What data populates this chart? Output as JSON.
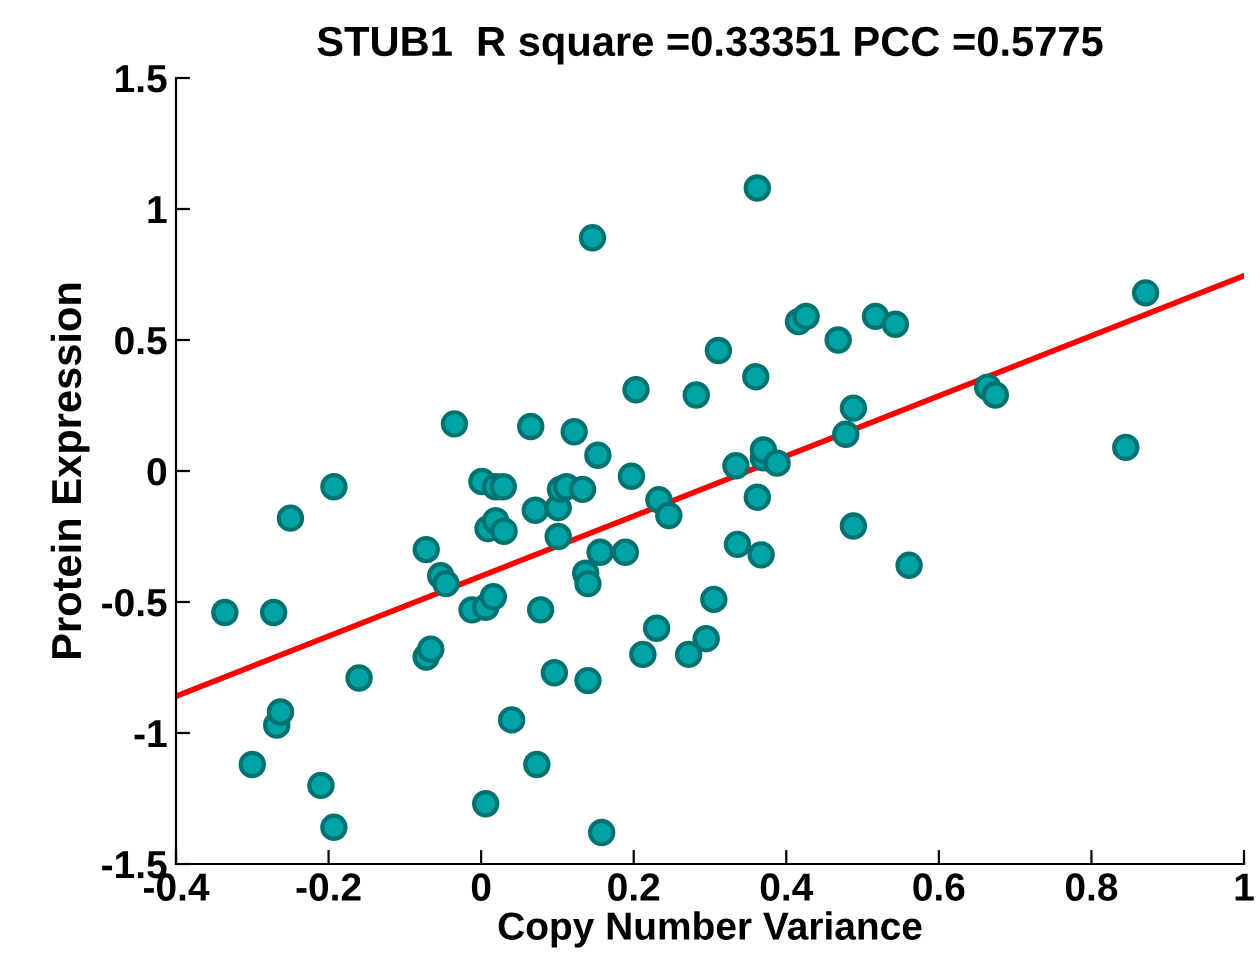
{
  "chart_data": {
    "type": "scatter",
    "title": "STUB1  R square =0.33351 PCC =0.5775",
    "xlabel": "Copy Number Variance",
    "ylabel": "Protein Expression",
    "xlim": [
      -0.4,
      1
    ],
    "ylim": [
      -1.5,
      1.5
    ],
    "xticks": [
      -0.4,
      -0.2,
      0,
      0.2,
      0.4,
      0.6,
      0.8,
      1
    ],
    "yticks": [
      -1.5,
      -1,
      -0.5,
      0,
      0.5,
      1,
      1.5
    ],
    "grid": false,
    "legend": false,
    "marker": "circle",
    "series": [
      {
        "color": "#00a3a3",
        "x": [
          -0.336,
          -0.272,
          -0.268,
          -0.263,
          -0.3,
          -0.21,
          -0.193,
          -0.25,
          -0.193,
          -0.16,
          -0.035,
          -0.072,
          -0.053,
          -0.046,
          -0.072,
          -0.066,
          -0.012,
          0.006,
          0.016,
          0.001,
          0.019,
          0.009,
          0.019,
          0.03,
          0.029,
          0.04,
          0.006,
          0.073,
          0.065,
          0.071,
          0.078,
          0.096,
          0.101,
          0.101,
          0.104,
          0.112,
          0.122,
          0.133,
          0.137,
          0.14,
          0.14,
          0.153,
          0.146,
          0.156,
          0.158,
          0.189,
          0.197,
          0.203,
          0.212,
          0.233,
          0.23,
          0.246,
          0.272,
          0.282,
          0.295,
          0.305,
          0.311,
          0.334,
          0.336,
          0.36,
          0.362,
          0.362,
          0.37,
          0.37,
          0.367,
          0.388,
          0.416,
          0.426,
          0.468,
          0.488,
          0.478,
          0.488,
          0.517,
          0.543,
          0.561,
          0.664,
          0.674,
          0.845,
          0.871
        ],
        "values": [
          -0.54,
          -0.54,
          -0.97,
          -0.92,
          -1.12,
          -1.2,
          -1.36,
          -0.18,
          -0.06,
          -0.79,
          0.18,
          -0.3,
          -0.4,
          -0.43,
          -0.71,
          -0.68,
          -0.53,
          -0.52,
          -0.48,
          -0.04,
          -0.06,
          -0.22,
          -0.19,
          -0.23,
          -0.06,
          -0.95,
          -1.27,
          -1.12,
          0.17,
          -0.15,
          -0.53,
          -0.77,
          -0.25,
          -0.14,
          -0.07,
          -0.06,
          0.15,
          -0.07,
          -0.39,
          -0.43,
          -0.8,
          0.06,
          0.89,
          -0.31,
          -1.38,
          -0.31,
          -0.02,
          0.31,
          -0.7,
          -0.11,
          -0.6,
          -0.17,
          -0.7,
          0.29,
          -0.64,
          -0.49,
          0.46,
          0.02,
          -0.28,
          0.36,
          1.08,
          -0.1,
          0.05,
          0.08,
          -0.32,
          0.03,
          0.57,
          0.59,
          0.5,
          0.24,
          0.14,
          -0.21,
          0.59,
          0.56,
          -0.36,
          0.32,
          0.29,
          0.09,
          0.68
        ]
      },
      {
        "type": "line",
        "color": "#ff0000",
        "marker": "none",
        "line_style": "solid",
        "x": [
          -0.4,
          1
        ],
        "values": [
          -0.86,
          0.745
        ]
      }
    ]
  }
}
